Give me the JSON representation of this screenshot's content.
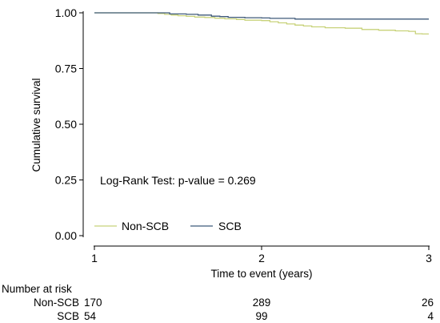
{
  "chart_data": {
    "type": "line",
    "title": "",
    "xlabel": "Time to event (years)",
    "ylabel": "Cumulative survival",
    "xlim": [
      1,
      3
    ],
    "ylim": [
      0,
      1
    ],
    "x_ticks": [
      "1",
      "2",
      "3"
    ],
    "y_ticks": [
      "0.00",
      "0.25",
      "0.50",
      "0.75",
      "1.00"
    ],
    "annotation": "Log-Rank Test: p-value = 0.269",
    "colors": {
      "Non-SCB": "#c8d27a",
      "SCB": "#3f5a7a"
    },
    "series": [
      {
        "name": "Non-SCB",
        "points": [
          [
            1.0,
            1.0
          ],
          [
            1.1,
            1.0
          ],
          [
            1.2,
            1.0
          ],
          [
            1.3,
            1.0
          ],
          [
            1.38,
            0.997
          ],
          [
            1.42,
            0.993
          ],
          [
            1.46,
            0.99
          ],
          [
            1.5,
            0.987
          ],
          [
            1.55,
            0.984
          ],
          [
            1.6,
            0.981
          ],
          [
            1.66,
            0.979
          ],
          [
            1.72,
            0.976
          ],
          [
            1.78,
            0.973
          ],
          [
            1.85,
            0.97
          ],
          [
            1.9,
            0.967
          ],
          [
            2.0,
            0.965
          ],
          [
            2.05,
            0.96
          ],
          [
            2.1,
            0.955
          ],
          [
            2.15,
            0.95
          ],
          [
            2.2,
            0.945
          ],
          [
            2.25,
            0.941
          ],
          [
            2.3,
            0.937
          ],
          [
            2.38,
            0.933
          ],
          [
            2.5,
            0.931
          ],
          [
            2.6,
            0.925
          ],
          [
            2.7,
            0.922
          ],
          [
            2.8,
            0.919
          ],
          [
            2.88,
            0.917
          ],
          [
            2.92,
            0.906
          ],
          [
            2.96,
            0.905
          ],
          [
            3.0,
            0.905
          ]
        ]
      },
      {
        "name": "SCB",
        "points": [
          [
            1.0,
            1.0
          ],
          [
            1.3,
            1.0
          ],
          [
            1.45,
            0.995
          ],
          [
            1.55,
            0.993
          ],
          [
            1.62,
            0.99
          ],
          [
            1.7,
            0.985
          ],
          [
            1.75,
            0.983
          ],
          [
            1.8,
            0.98
          ],
          [
            1.9,
            0.978
          ],
          [
            2.0,
            0.977
          ],
          [
            2.05,
            0.975
          ],
          [
            2.2,
            0.972
          ],
          [
            3.0,
            0.972
          ]
        ]
      }
    ],
    "legend": [
      "Non-SCB",
      "SCB"
    ],
    "risk_table": {
      "title": "Number at risk",
      "rows": [
        {
          "label": "Non-SCB",
          "values": [
            "170",
            "289",
            "26"
          ]
        },
        {
          "label": "SCB",
          "values": [
            "54",
            "99",
            "4"
          ]
        }
      ]
    }
  }
}
